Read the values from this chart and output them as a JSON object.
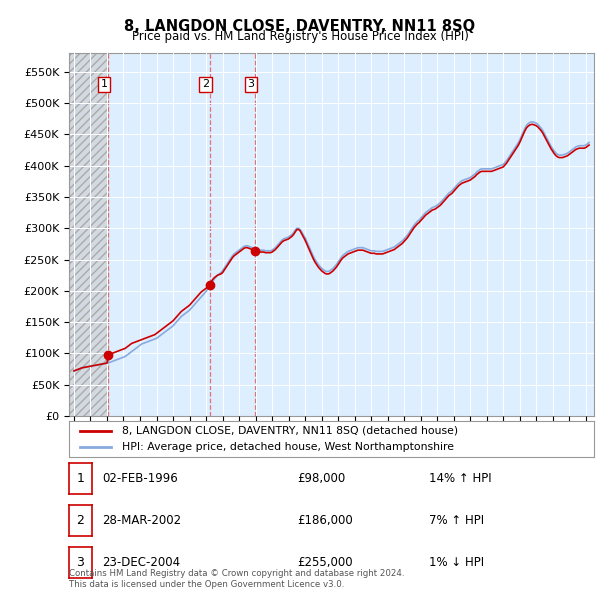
{
  "title": "8, LANGDON CLOSE, DAVENTRY, NN11 8SQ",
  "subtitle": "Price paid vs. HM Land Registry's House Price Index (HPI)",
  "legend_line1": "8, LANGDON CLOSE, DAVENTRY, NN11 8SQ (detached house)",
  "legend_line2": "HPI: Average price, detached house, West Northamptonshire",
  "footer1": "Contains HM Land Registry data © Crown copyright and database right 2024.",
  "footer2": "This data is licensed under the Open Government Licence v3.0.",
  "transactions": [
    {
      "num": 1,
      "date": "02-FEB-1996",
      "price": 98000,
      "hpi_rel": "14% ↑ HPI",
      "year": 1996.08
    },
    {
      "num": 2,
      "date": "28-MAR-2002",
      "price": 186000,
      "hpi_rel": "7% ↑ HPI",
      "year": 2002.25
    },
    {
      "num": 3,
      "date": "23-DEC-2004",
      "price": 255000,
      "hpi_rel": "1% ↓ HPI",
      "year": 2004.98
    }
  ],
  "hpi_color": "#88aadd",
  "price_color": "#cc0000",
  "dashed_color": "#dd6666",
  "plot_bg_color": "#ddeeff",
  "hatch_color": "#cccccc",
  "ylim": [
    0,
    580000
  ],
  "yticks": [
    0,
    50000,
    100000,
    150000,
    200000,
    250000,
    300000,
    350000,
    400000,
    450000,
    500000,
    550000
  ],
  "xlim_start": 1993.7,
  "xlim_end": 2025.5,
  "hpi_months": [
    1994.0,
    1994.1,
    1994.2,
    1994.3,
    1994.4,
    1994.5,
    1994.6,
    1994.7,
    1994.8,
    1994.9,
    1995.0,
    1995.1,
    1995.2,
    1995.3,
    1995.4,
    1995.5,
    1995.6,
    1995.7,
    1995.8,
    1995.9,
    1996.0,
    1996.1,
    1996.2,
    1996.3,
    1996.4,
    1996.5,
    1996.6,
    1996.7,
    1996.8,
    1996.9,
    1997.0,
    1997.1,
    1997.2,
    1997.3,
    1997.4,
    1997.5,
    1997.6,
    1997.7,
    1997.8,
    1997.9,
    1998.0,
    1998.1,
    1998.2,
    1998.3,
    1998.4,
    1998.5,
    1998.6,
    1998.7,
    1998.8,
    1998.9,
    1999.0,
    1999.1,
    1999.2,
    1999.3,
    1999.4,
    1999.5,
    1999.6,
    1999.7,
    1999.8,
    1999.9,
    2000.0,
    2000.1,
    2000.2,
    2000.3,
    2000.4,
    2000.5,
    2000.6,
    2000.7,
    2000.8,
    2000.9,
    2001.0,
    2001.1,
    2001.2,
    2001.3,
    2001.4,
    2001.5,
    2001.6,
    2001.7,
    2001.8,
    2001.9,
    2002.0,
    2002.1,
    2002.2,
    2002.3,
    2002.4,
    2002.5,
    2002.6,
    2002.7,
    2002.8,
    2002.9,
    2003.0,
    2003.1,
    2003.2,
    2003.3,
    2003.4,
    2003.5,
    2003.6,
    2003.7,
    2003.8,
    2003.9,
    2004.0,
    2004.1,
    2004.2,
    2004.3,
    2004.4,
    2004.5,
    2004.6,
    2004.7,
    2004.8,
    2004.9,
    2005.0,
    2005.1,
    2005.2,
    2005.3,
    2005.4,
    2005.5,
    2005.6,
    2005.7,
    2005.8,
    2005.9,
    2006.0,
    2006.1,
    2006.2,
    2006.3,
    2006.4,
    2006.5,
    2006.6,
    2006.7,
    2006.8,
    2006.9,
    2007.0,
    2007.1,
    2007.2,
    2007.3,
    2007.4,
    2007.5,
    2007.6,
    2007.7,
    2007.8,
    2007.9,
    2008.0,
    2008.1,
    2008.2,
    2008.3,
    2008.4,
    2008.5,
    2008.6,
    2008.7,
    2008.8,
    2008.9,
    2009.0,
    2009.1,
    2009.2,
    2009.3,
    2009.4,
    2009.5,
    2009.6,
    2009.7,
    2009.8,
    2009.9,
    2010.0,
    2010.1,
    2010.2,
    2010.3,
    2010.4,
    2010.5,
    2010.6,
    2010.7,
    2010.8,
    2010.9,
    2011.0,
    2011.1,
    2011.2,
    2011.3,
    2011.4,
    2011.5,
    2011.6,
    2011.7,
    2011.8,
    2011.9,
    2012.0,
    2012.1,
    2012.2,
    2012.3,
    2012.4,
    2012.5,
    2012.6,
    2012.7,
    2012.8,
    2012.9,
    2013.0,
    2013.1,
    2013.2,
    2013.3,
    2013.4,
    2013.5,
    2013.6,
    2013.7,
    2013.8,
    2013.9,
    2014.0,
    2014.1,
    2014.2,
    2014.3,
    2014.4,
    2014.5,
    2014.6,
    2014.7,
    2014.8,
    2014.9,
    2015.0,
    2015.1,
    2015.2,
    2015.3,
    2015.4,
    2015.5,
    2015.6,
    2015.7,
    2015.8,
    2015.9,
    2016.0,
    2016.1,
    2016.2,
    2016.3,
    2016.4,
    2016.5,
    2016.6,
    2016.7,
    2016.8,
    2016.9,
    2017.0,
    2017.1,
    2017.2,
    2017.3,
    2017.4,
    2017.5,
    2017.6,
    2017.7,
    2017.8,
    2017.9,
    2018.0,
    2018.1,
    2018.2,
    2018.3,
    2018.4,
    2018.5,
    2018.6,
    2018.7,
    2018.8,
    2018.9,
    2019.0,
    2019.1,
    2019.2,
    2019.3,
    2019.4,
    2019.5,
    2019.6,
    2019.7,
    2019.8,
    2019.9,
    2020.0,
    2020.1,
    2020.2,
    2020.3,
    2020.4,
    2020.5,
    2020.6,
    2020.7,
    2020.8,
    2020.9,
    2021.0,
    2021.1,
    2021.2,
    2021.3,
    2021.4,
    2021.5,
    2021.6,
    2021.7,
    2021.8,
    2021.9,
    2022.0,
    2022.1,
    2022.2,
    2022.3,
    2022.4,
    2022.5,
    2022.6,
    2022.7,
    2022.8,
    2022.9,
    2023.0,
    2023.1,
    2023.2,
    2023.3,
    2023.4,
    2023.5,
    2023.6,
    2023.7,
    2023.8,
    2023.9,
    2024.0,
    2024.1,
    2024.2,
    2024.3,
    2024.4,
    2024.5,
    2024.6,
    2024.7,
    2024.8,
    2024.9,
    2025.0,
    2025.1,
    2025.2
  ],
  "hpi_vals": [
    72000,
    73000,
    74000,
    75000,
    76000,
    77000,
    77500,
    78000,
    78500,
    79000,
    79500,
    80000,
    80500,
    81000,
    81500,
    82000,
    82500,
    83000,
    83500,
    84000,
    84500,
    85000,
    86000,
    87000,
    88000,
    89000,
    90000,
    91000,
    92000,
    93000,
    94000,
    95000,
    97000,
    99000,
    101000,
    103000,
    105000,
    107000,
    109000,
    111000,
    113000,
    115000,
    116000,
    117000,
    118000,
    119000,
    120000,
    121000,
    122000,
    123000,
    124000,
    126000,
    128000,
    130000,
    132000,
    134000,
    136000,
    138000,
    140000,
    142000,
    144000,
    147000,
    150000,
    153000,
    156000,
    159000,
    161000,
    163000,
    165000,
    167000,
    169000,
    172000,
    175000,
    178000,
    181000,
    184000,
    187000,
    190000,
    193000,
    196000,
    199000,
    203000,
    207000,
    211000,
    215000,
    219000,
    222000,
    225000,
    227000,
    229000,
    232000,
    236000,
    240000,
    244000,
    248000,
    252000,
    256000,
    259000,
    261000,
    263000,
    265000,
    267000,
    269000,
    271000,
    272000,
    272000,
    271000,
    270000,
    269000,
    268000,
    267000,
    266000,
    265000,
    265000,
    265000,
    265000,
    264000,
    264000,
    264000,
    264000,
    265000,
    267000,
    269000,
    272000,
    275000,
    278000,
    281000,
    283000,
    284000,
    285000,
    286000,
    288000,
    290000,
    293000,
    297000,
    300000,
    300000,
    298000,
    294000,
    289000,
    285000,
    279000,
    273000,
    267000,
    261000,
    255000,
    250000,
    246000,
    242000,
    239000,
    236000,
    234000,
    232000,
    231000,
    231000,
    232000,
    234000,
    236000,
    239000,
    242000,
    246000,
    250000,
    254000,
    257000,
    259000,
    261000,
    263000,
    264000,
    265000,
    266000,
    267000,
    268000,
    269000,
    269000,
    269000,
    269000,
    268000,
    267000,
    266000,
    265000,
    264000,
    264000,
    264000,
    263000,
    263000,
    263000,
    263000,
    263000,
    264000,
    265000,
    266000,
    267000,
    268000,
    269000,
    270000,
    272000,
    274000,
    276000,
    278000,
    280000,
    283000,
    286000,
    289000,
    293000,
    297000,
    301000,
    305000,
    308000,
    311000,
    313000,
    316000,
    319000,
    322000,
    325000,
    327000,
    329000,
    331000,
    333000,
    334000,
    335000,
    337000,
    339000,
    341000,
    344000,
    347000,
    350000,
    353000,
    356000,
    358000,
    360000,
    363000,
    366000,
    369000,
    372000,
    374000,
    376000,
    377000,
    378000,
    379000,
    380000,
    381000,
    383000,
    385000,
    387000,
    390000,
    392000,
    394000,
    395000,
    395000,
    395000,
    395000,
    395000,
    395000,
    395000,
    396000,
    397000,
    398000,
    399000,
    400000,
    401000,
    402000,
    405000,
    408000,
    412000,
    416000,
    420000,
    424000,
    428000,
    432000,
    436000,
    441000,
    447000,
    453000,
    459000,
    464000,
    467000,
    469000,
    470000,
    470000,
    469000,
    468000,
    466000,
    463000,
    460000,
    456000,
    451000,
    446000,
    441000,
    436000,
    431000,
    427000,
    423000,
    420000,
    418000,
    417000,
    417000,
    417000,
    418000,
    419000,
    420000,
    422000,
    424000,
    426000,
    428000,
    430000,
    431000,
    432000,
    432000,
    432000,
    432000,
    433000,
    435000,
    437000
  ],
  "price_vals": [
    72000,
    73000,
    74000,
    75000,
    76000,
    77000,
    77500,
    78000,
    78500,
    79000,
    79500,
    80000,
    80500,
    81000,
    81500,
    82000,
    82500,
    83000,
    83500,
    84000,
    84500,
    98000,
    99000,
    100000,
    101000,
    102000,
    103000,
    104000,
    105000,
    106000,
    107000,
    108000,
    110000,
    112000,
    114000,
    116000,
    117000,
    118000,
    119000,
    120000,
    121000,
    122000,
    123000,
    124000,
    125000,
    126000,
    127000,
    128000,
    129000,
    130000,
    132000,
    134000,
    136000,
    138000,
    140000,
    142000,
    144000,
    146000,
    148000,
    150000,
    152000,
    155000,
    158000,
    161000,
    164000,
    167000,
    169000,
    171000,
    173000,
    175000,
    177000,
    180000,
    183000,
    186000,
    189000,
    192000,
    195000,
    198000,
    200000,
    202000,
    204000,
    207000,
    210000,
    214000,
    218000,
    221000,
    223000,
    225000,
    226000,
    227000,
    229000,
    233000,
    237000,
    241000,
    245000,
    249000,
    253000,
    256000,
    258000,
    260000,
    262000,
    264000,
    266000,
    268000,
    269000,
    269000,
    268000,
    267000,
    266000,
    265000,
    264000,
    263000,
    262000,
    262000,
    262000,
    262000,
    261000,
    261000,
    261000,
    261000,
    262000,
    264000,
    266000,
    269000,
    272000,
    275000,
    278000,
    280000,
    281000,
    282000,
    283000,
    285000,
    287000,
    290000,
    294000,
    298000,
    298000,
    296000,
    291000,
    286000,
    281000,
    275000,
    269000,
    263000,
    257000,
    251000,
    246000,
    242000,
    238000,
    235000,
    232000,
    230000,
    228000,
    227000,
    227000,
    228000,
    230000,
    232000,
    235000,
    238000,
    242000,
    246000,
    250000,
    253000,
    255000,
    257000,
    259000,
    260000,
    261000,
    262000,
    263000,
    264000,
    265000,
    265000,
    265000,
    265000,
    264000,
    263000,
    262000,
    261000,
    260000,
    260000,
    260000,
    259000,
    259000,
    259000,
    259000,
    259000,
    260000,
    261000,
    262000,
    263000,
    264000,
    265000,
    266000,
    268000,
    270000,
    272000,
    274000,
    276000,
    279000,
    282000,
    285000,
    289000,
    293000,
    297000,
    301000,
    304000,
    307000,
    309000,
    312000,
    315000,
    318000,
    321000,
    323000,
    325000,
    327000,
    329000,
    330000,
    331000,
    333000,
    335000,
    337000,
    340000,
    343000,
    346000,
    349000,
    352000,
    354000,
    356000,
    359000,
    362000,
    365000,
    368000,
    370000,
    372000,
    373000,
    374000,
    375000,
    376000,
    377000,
    379000,
    381000,
    383000,
    386000,
    388000,
    390000,
    391000,
    391000,
    391000,
    391000,
    391000,
    391000,
    391000,
    392000,
    393000,
    394000,
    395000,
    396000,
    397000,
    398000,
    401000,
    404000,
    408000,
    412000,
    416000,
    420000,
    424000,
    428000,
    432000,
    437000,
    443000,
    449000,
    455000,
    460000,
    463000,
    465000,
    466000,
    466000,
    465000,
    464000,
    462000,
    459000,
    456000,
    452000,
    447000,
    442000,
    437000,
    432000,
    427000,
    423000,
    419000,
    416000,
    414000,
    413000,
    413000,
    413000,
    414000,
    415000,
    416000,
    418000,
    420000,
    422000,
    424000,
    426000,
    427000,
    428000,
    428000,
    428000,
    428000,
    429000,
    431000,
    433000
  ]
}
